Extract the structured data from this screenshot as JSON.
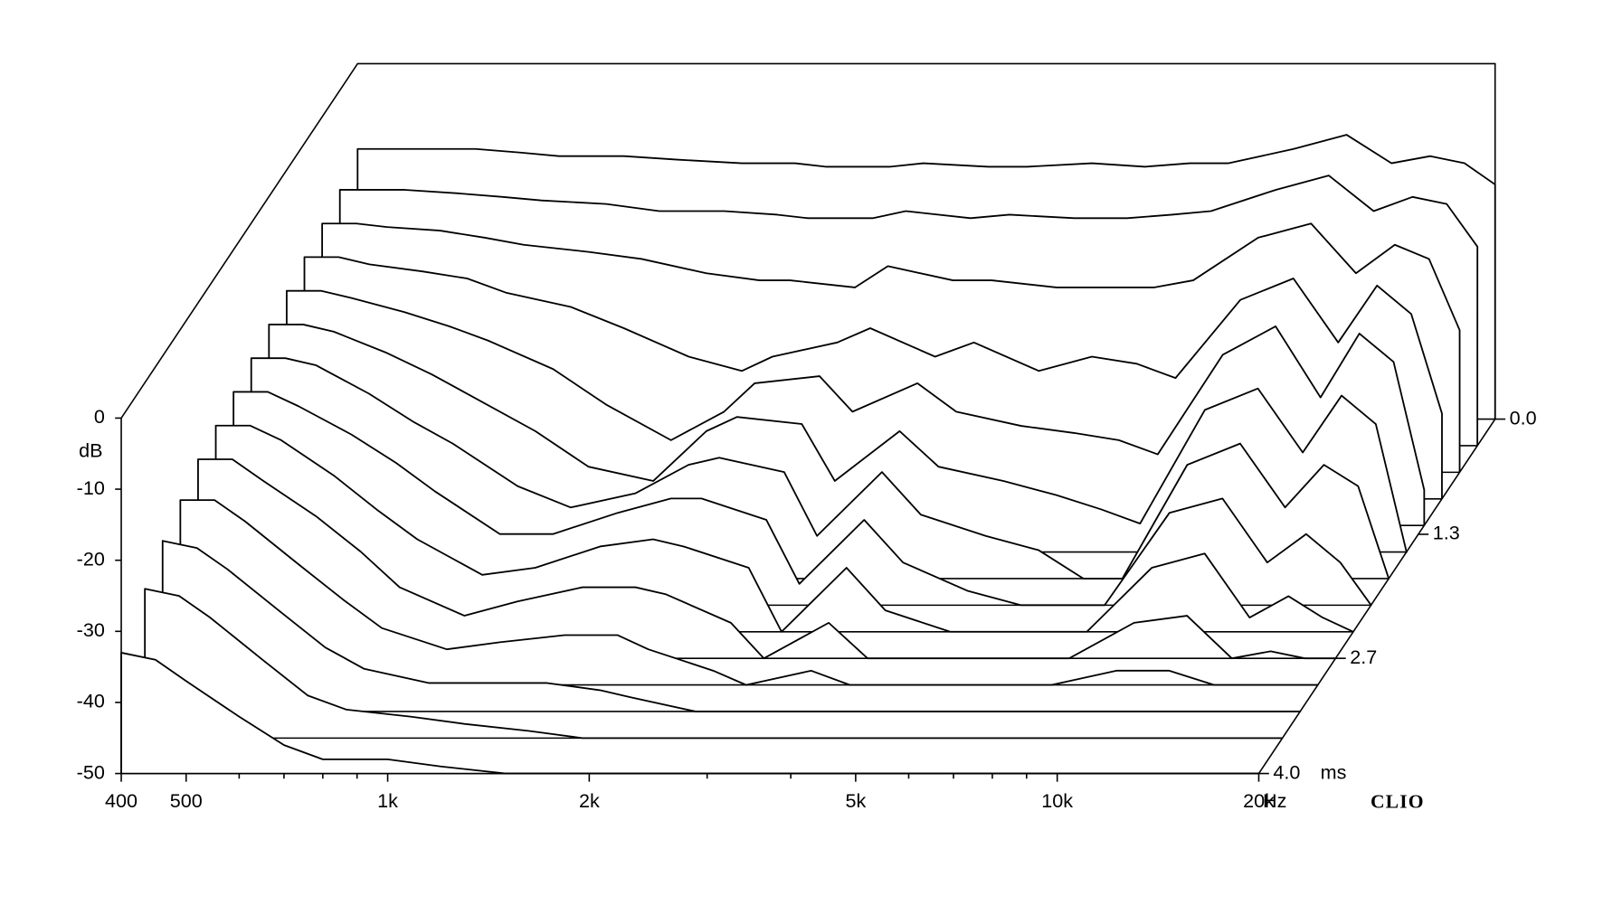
{
  "chart_data": {
    "type": "waterfall",
    "x_unit": "Hz",
    "y_label": "dB",
    "z_unit": "ms",
    "brand": "CLIO",
    "log_x": true,
    "xlim": [
      400,
      20000
    ],
    "xticks": [
      400,
      500,
      {
        "value": 1000,
        "label": "1k"
      },
      {
        "value": 2000,
        "label": "2k"
      },
      {
        "value": 5000,
        "label": "5k"
      },
      {
        "value": 10000,
        "label": "10k"
      },
      {
        "value": 20000,
        "label": "20k"
      }
    ],
    "xminorticks": [
      600,
      700,
      800,
      900,
      3000,
      4000,
      6000,
      7000,
      8000,
      9000
    ],
    "ylim": [
      -50,
      0
    ],
    "yticks": [
      0,
      -10,
      -20,
      -30,
      -40,
      -50
    ],
    "zlim": [
      0,
      4
    ],
    "zticks": [
      {
        "value": 0,
        "label": "0.0"
      },
      1.3,
      2.7,
      {
        "value": 4,
        "label": "4.0"
      }
    ],
    "x": [
      400,
      450,
      500,
      600,
      700,
      800,
      1000,
      1200,
      1500,
      1800,
      2000,
      2500,
      2800,
      3500,
      4000,
      5000,
      6000,
      7000,
      8000,
      10000,
      12000,
      14000,
      16000,
      18000,
      20000
    ],
    "slices": [
      {
        "time": 0,
        "values": [
          -12,
          -12,
          -12,
          -12,
          -12.5,
          -13,
          -13,
          -13.5,
          -14,
          -14,
          -14.5,
          -14.5,
          -14,
          -14.5,
          -14.5,
          -14,
          -14.5,
          -14,
          -14,
          -12,
          -10,
          -14,
          -13,
          -14,
          -17
        ]
      },
      {
        "time": 0.3,
        "values": [
          -14,
          -14,
          -14,
          -14.5,
          -15,
          -15.5,
          -16,
          -17,
          -17,
          -17.5,
          -18,
          -18,
          -17,
          -18,
          -17.5,
          -18,
          -18,
          -17.5,
          -17,
          -14,
          -12,
          -17,
          -15,
          -16,
          -22
        ]
      },
      {
        "time": 0.6,
        "values": [
          -15,
          -15,
          -15.5,
          -16,
          -17,
          -18,
          -19,
          -20,
          -22,
          -23,
          -23,
          -24,
          -21,
          -23,
          -23,
          -24,
          -24,
          -24,
          -23,
          -17,
          -15,
          -22,
          -18,
          -20,
          -30
        ]
      },
      {
        "time": 0.9,
        "values": [
          -16,
          -16,
          -17,
          -18,
          -19,
          -21,
          -23,
          -26,
          -30,
          -32,
          -30,
          -28,
          -26,
          -30,
          -28,
          -32,
          -30,
          -31,
          -33,
          -22,
          -19,
          -28,
          -20,
          -24,
          -38
        ]
      },
      {
        "time": 1.2,
        "values": [
          -17,
          -17,
          -18,
          -20,
          -22,
          -24,
          -28,
          -33,
          -38,
          -34,
          -30,
          -29,
          -34,
          -30,
          -34,
          -36,
          -37,
          -38,
          -40,
          -26,
          -22,
          -32,
          -23,
          -27,
          -45
        ]
      },
      {
        "time": 1.5,
        "values": [
          -18,
          -18,
          -19,
          -22,
          -25,
          -28,
          -33,
          -38,
          -40,
          -33,
          -31,
          -32,
          -40,
          -33,
          -38,
          -40,
          -42,
          -44,
          -46,
          -30,
          -27,
          -36,
          -28,
          -32,
          -50
        ]
      },
      {
        "time": 1.8,
        "values": [
          -19,
          -19,
          -20,
          -24,
          -28,
          -31,
          -37,
          -40,
          -38,
          -34,
          -33,
          -35,
          -44,
          -35,
          -41,
          -44,
          -46,
          -50,
          -50,
          -34,
          -31,
          -40,
          -34,
          -37,
          -50
        ]
      },
      {
        "time": 2.1,
        "values": [
          -20,
          -20,
          -22,
          -26,
          -30,
          -34,
          -40,
          -40,
          -37,
          -35,
          -35,
          -38,
          -47,
          -38,
          -44,
          -48,
          -50,
          -50,
          -50,
          -37,
          -35,
          -44,
          -40,
          -44,
          -50
        ]
      },
      {
        "time": 2.4,
        "values": [
          -21,
          -21,
          -23,
          -28,
          -33,
          -37,
          -42,
          -41,
          -38,
          -37,
          -38,
          -41,
          -50,
          -41,
          -47,
          -50,
          -50,
          -50,
          -50,
          -41,
          -39,
          -48,
          -45,
          -48,
          -50
        ]
      },
      {
        "time": 2.7,
        "values": [
          -22,
          -22,
          -25,
          -30,
          -35,
          -40,
          -44,
          -42,
          -40,
          -40,
          -41,
          -45,
          -50,
          -45,
          -50,
          -50,
          -50,
          -50,
          -50,
          -45,
          -44,
          -50,
          -49,
          -50,
          -50
        ]
      },
      {
        "time": 3.0,
        "values": [
          -24,
          -24,
          -27,
          -33,
          -38,
          -42,
          -45,
          -44,
          -43,
          -43,
          -45,
          -48,
          -50,
          -48,
          -50,
          -50,
          -50,
          -50,
          -50,
          -48,
          -48,
          -50,
          -50,
          -50,
          -50
        ]
      },
      {
        "time": 3.3,
        "values": [
          -26,
          -27,
          -30,
          -36,
          -41,
          -44,
          -46,
          -46,
          -46,
          -47,
          -48,
          -50,
          -50,
          -50,
          -50,
          -50,
          -50,
          -50,
          -50,
          -50,
          -50,
          -50,
          -50,
          -50,
          -50
        ]
      },
      {
        "time": 3.6,
        "values": [
          -29,
          -30,
          -33,
          -39,
          -44,
          -46,
          -47,
          -48,
          -49,
          -50,
          -50,
          -50,
          -50,
          -50,
          -50,
          -50,
          -50,
          -50,
          -50,
          -50,
          -50,
          -50,
          -50,
          -50,
          -50
        ]
      },
      {
        "time": 4.0,
        "values": [
          -33,
          -34,
          -37,
          -42,
          -46,
          -48,
          -48,
          -49,
          -50,
          -50,
          -50,
          -50,
          -50,
          -50,
          -50,
          -50,
          -50,
          -50,
          -50,
          -50,
          -50,
          -50,
          -50,
          -50,
          -50
        ]
      }
    ]
  }
}
